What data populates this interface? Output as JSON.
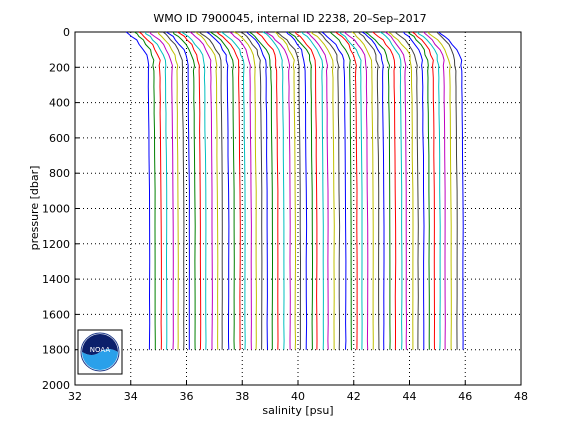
{
  "chart_data": {
    "type": "line",
    "title": "WMO ID 7900045, internal ID 2238, 20–Sep–2017",
    "xlabel": "salinity [psu]",
    "ylabel": "pressure [dbar]",
    "xlim": [
      32,
      48
    ],
    "ylim": [
      2000,
      0
    ],
    "y_reversed": true,
    "grid": true,
    "x_ticks": [
      32,
      34,
      36,
      38,
      40,
      42,
      44,
      46,
      48
    ],
    "y_ticks": [
      0,
      200,
      400,
      600,
      800,
      1000,
      1200,
      1400,
      1600,
      1800,
      2000
    ],
    "x_tick_labels": [
      "32",
      "34",
      "36",
      "38",
      "40",
      "42",
      "44",
      "46",
      "48"
    ],
    "y_tick_labels": [
      "0",
      "200",
      "400",
      "600",
      "800",
      "1000",
      "1200",
      "1400",
      "1600",
      "1800",
      "2000"
    ],
    "colors": [
      "#0000ff",
      "#008000",
      "#ff0000",
      "#00bfbf",
      "#bf00bf",
      "#bfbf00",
      "#404040"
    ],
    "max_pressure": 1800,
    "profile_count": 57,
    "profile_spacing": 0.2,
    "first_surface_salinity": 33.9,
    "first_deep_salinity": 34.7,
    "surface_layer_depth": 200,
    "logo": {
      "name": "NOAA",
      "text": "NOAA"
    }
  }
}
